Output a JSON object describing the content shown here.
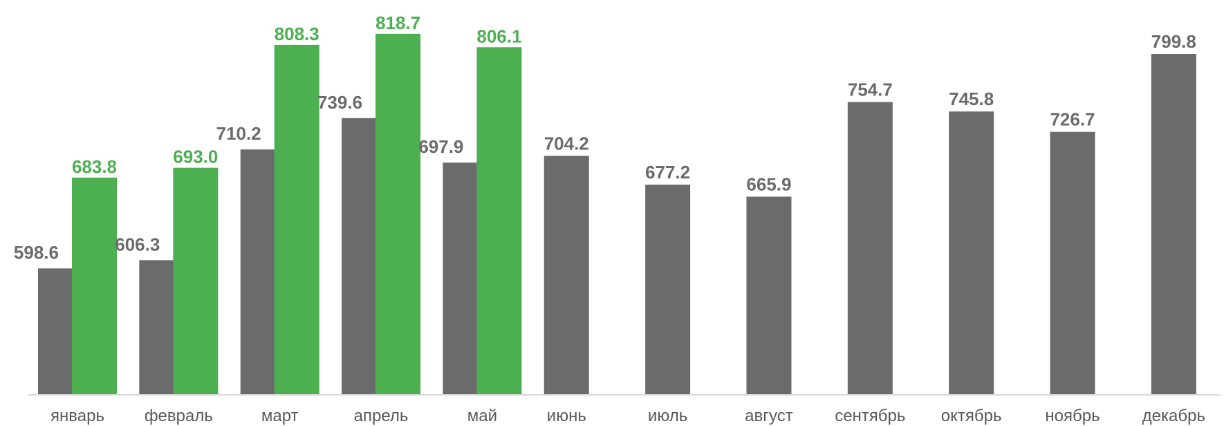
{
  "chart_data": {
    "type": "bar",
    "title": "",
    "xlabel": "",
    "ylabel": "",
    "ylim": [
      480,
      840
    ],
    "grid": false,
    "legend": "none",
    "categories": [
      "январь",
      "февраль",
      "март",
      "апрель",
      "май",
      "июнь",
      "июль",
      "август",
      "сентябрь",
      "октябрь",
      "ноябрь",
      "декабрь"
    ],
    "series": [
      {
        "color": "#6b6b6b",
        "values": [
          598.6,
          606.3,
          710.2,
          739.6,
          697.9,
          704.2,
          677.2,
          665.9,
          754.7,
          745.8,
          726.7,
          799.8
        ],
        "labels": [
          "598.6",
          "606.3",
          "710.2",
          "739.6",
          "697.9",
          "704.2",
          "677.2",
          "665.9",
          "754.7",
          "745.8",
          "726.7",
          "799.8"
        ]
      },
      {
        "color": "#4caf50",
        "values": [
          683.8,
          693.0,
          808.3,
          818.7,
          806.1,
          null,
          null,
          null,
          null,
          null,
          null,
          null
        ],
        "labels": [
          "683.8",
          "693.0",
          "808.3",
          "818.7",
          "806.1",
          null,
          null,
          null,
          null,
          null,
          null,
          null
        ]
      }
    ]
  }
}
